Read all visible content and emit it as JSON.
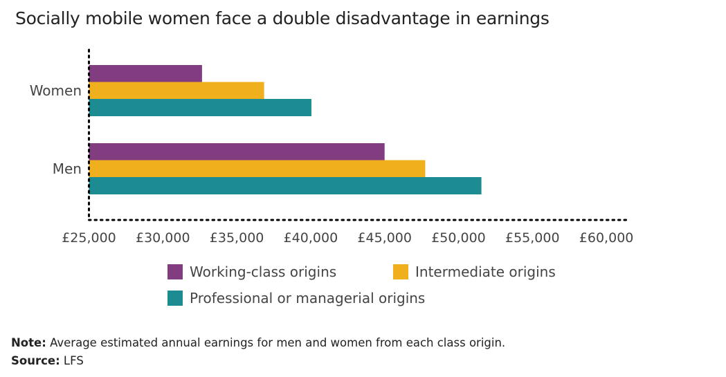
{
  "chart_data": {
    "type": "bar",
    "orientation": "horizontal",
    "title": "Socially mobile women face a double disadvantage in earnings",
    "categories": [
      "Women",
      "Men"
    ],
    "series": [
      {
        "name": "Working-class origins",
        "color": "#823C80",
        "values": [
          32650,
          45000
        ]
      },
      {
        "name": "Intermediate origins",
        "color": "#F0B01E",
        "values": [
          36850,
          47750
        ]
      },
      {
        "name": "Professional or managerial origins",
        "color": "#1C8C92",
        "values": [
          40050,
          51550
        ]
      }
    ],
    "xlim": [
      25000,
      61400
    ],
    "xticks": [
      "£25,000",
      "£30,000",
      "£35,000",
      "£40,000",
      "£45,000",
      "£50,000",
      "£55,000",
      "£60,000"
    ],
    "xtick_values": [
      25000,
      30000,
      35000,
      40000,
      45000,
      50000,
      55000,
      60000
    ],
    "grid": false,
    "legend_position": "bottom"
  },
  "note_label": "Note:",
  "note_text": " Average estimated annual earnings for men and women from each class origin.",
  "source_label": "Source:",
  "source_text": " LFS"
}
